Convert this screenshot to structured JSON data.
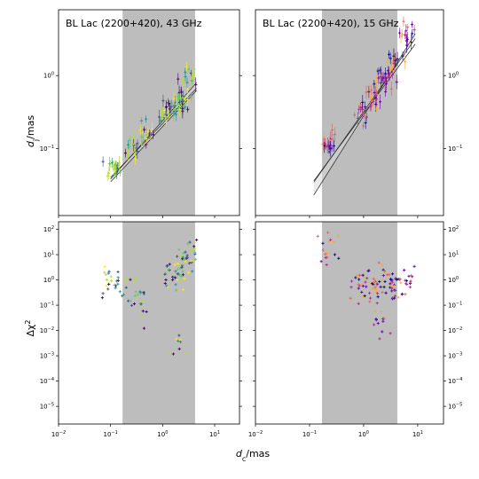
{
  "chart_data": {
    "type": "scatter",
    "xlabel_main": "d",
    "xlabel_sub": "c",
    "xlabel_unit": "/mas",
    "ylabel_top_main": "d",
    "ylabel_top_sub": "j",
    "ylabel_top_unit": "/mas",
    "ylabel_bottom_main": "Δχ",
    "ylabel_bottom_sup": "2",
    "x_axis": {
      "scale": "log",
      "lim": [
        0.01,
        30
      ],
      "ticks": [
        {
          "v": 0.01,
          "e": "−2"
        },
        {
          "v": 0.1,
          "e": "−1"
        },
        {
          "v": 1,
          "e": "0"
        },
        {
          "v": 10,
          "e": "1"
        }
      ]
    },
    "top_y_axis": {
      "scale": "log",
      "lim": [
        0.012,
        8
      ],
      "ticks": [
        {
          "v": 0.1,
          "e": "−1"
        },
        {
          "v": 1,
          "e": "0"
        }
      ]
    },
    "bottom_y_axis": {
      "scale": "log",
      "lim": [
        2e-06,
        200
      ],
      "ticks": [
        {
          "v": 1e-05,
          "e": "−5"
        },
        {
          "v": 0.0001,
          "e": "−4"
        },
        {
          "v": 0.001,
          "e": "−3"
        },
        {
          "v": 0.01,
          "e": "−2"
        },
        {
          "v": 0.1,
          "e": "−1"
        },
        {
          "v": 1,
          "e": "0"
        },
        {
          "v": 10,
          "e": "1"
        },
        {
          "v": 100,
          "e": "2"
        }
      ]
    },
    "shaded_region_x": [
      0.17,
      4.2
    ],
    "shade_color": "#bdbdbd",
    "panels": [
      {
        "title": "BL Lac (2200+420), 43 GHz",
        "colormap": "viridis",
        "fit": {
          "a": 0.22,
          "k": 0.78,
          "lines": [
            [
              0.2,
              0.76
            ],
            [
              0.24,
              0.8
            ],
            [
              0.22,
              0.74
            ]
          ],
          "xrange": [
            0.1,
            4.5
          ]
        },
        "dj_clusters": [
          [
            0.12,
            0.055,
            20
          ],
          [
            0.25,
            0.1,
            14
          ],
          [
            0.5,
            0.17,
            18
          ],
          [
            1.2,
            0.3,
            22
          ],
          [
            2.2,
            0.45,
            30
          ],
          [
            3.5,
            0.9,
            14
          ]
        ],
        "chi_clusters": [
          [
            0.1,
            0.8,
            16
          ],
          [
            0.15,
            0.5,
            10
          ],
          [
            0.3,
            0.3,
            14
          ],
          [
            0.4,
            0.08,
            8
          ],
          [
            1.5,
            1.2,
            20
          ],
          [
            2.3,
            3,
            26
          ],
          [
            3.5,
            8,
            20
          ],
          [
            2,
            0.003,
            10
          ]
        ]
      },
      {
        "title": "BL Lac (2200+420), 15 GHz",
        "colormap": "plasma",
        "fit": {
          "a": 0.3,
          "k": 1.1,
          "lines": [
            [
              0.32,
              1.05
            ],
            [
              0.28,
              1.18
            ],
            [
              0.3,
              1.0
            ]
          ],
          "xrange": [
            0.12,
            9
          ]
        },
        "dj_clusters": [
          [
            0.22,
            0.11,
            18
          ],
          [
            0.9,
            0.3,
            14
          ],
          [
            1.5,
            0.45,
            18
          ],
          [
            2.5,
            0.9,
            22
          ],
          [
            4,
            1.6,
            16
          ],
          [
            6.5,
            3.5,
            16
          ]
        ],
        "chi_clusters": [
          [
            0.22,
            15,
            18
          ],
          [
            0.8,
            0.6,
            18
          ],
          [
            1.5,
            0.8,
            26
          ],
          [
            2.5,
            1.0,
            26
          ],
          [
            4,
            0.5,
            18
          ],
          [
            7,
            1.2,
            14
          ],
          [
            2,
            0.02,
            12
          ]
        ]
      }
    ]
  }
}
